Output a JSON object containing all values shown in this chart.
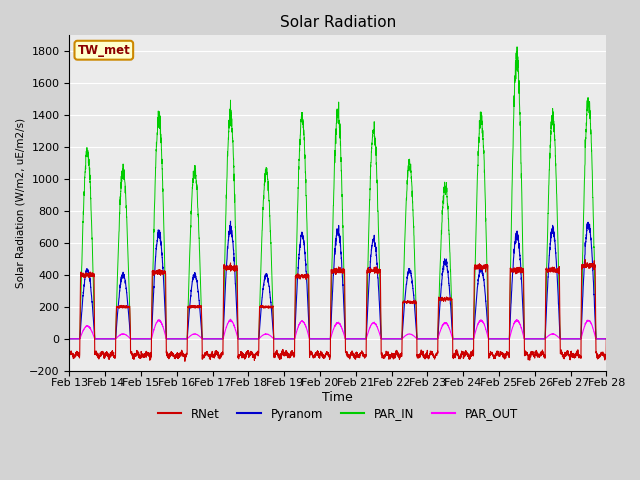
{
  "title": "Solar Radiation",
  "ylabel": "Solar Radiation (W/m2, uE/m2/s)",
  "xlabel": "Time",
  "ylim": [
    -200,
    1900
  ],
  "yticks": [
    -200,
    0,
    200,
    400,
    600,
    800,
    1000,
    1200,
    1400,
    1600,
    1800
  ],
  "n_days": 15,
  "x_labels": [
    "Feb 13",
    "Feb 14",
    "Feb 15",
    "Feb 16",
    "Feb 17",
    "Feb 18",
    "Feb 19",
    "Feb 20",
    "Feb 21",
    "Feb 22",
    "Feb 23",
    "Feb 24",
    "Feb 25",
    "Feb 26",
    "Feb 27",
    "Feb 28"
  ],
  "background_color": "#d3d3d3",
  "plot_bg_color": "#ebebeb",
  "grid_color": "#ffffff",
  "colors": {
    "RNet": "#cc0000",
    "Pyranom": "#0000cc",
    "PAR_IN": "#00cc00",
    "PAR_OUT": "#ff00ff"
  },
  "par_in_peaks": [
    1170,
    1050,
    1380,
    1050,
    1400,
    1050,
    1380,
    1420,
    1300,
    1100,
    960,
    1390,
    1760,
    1380,
    1490
  ],
  "pyranom_peaks": [
    430,
    400,
    660,
    400,
    690,
    400,
    650,
    680,
    620,
    430,
    490,
    440,
    650,
    680,
    720
  ],
  "rnet_peaks": [
    400,
    200,
    415,
    200,
    445,
    200,
    390,
    425,
    425,
    230,
    250,
    450,
    430,
    430,
    460
  ],
  "par_out_peaks": [
    80,
    30,
    115,
    30,
    115,
    30,
    110,
    100,
    100,
    30,
    100,
    115,
    115,
    30,
    115
  ],
  "night_rnet_base": -100,
  "night_rnet_noise": 25,
  "station_label": "TW_met",
  "station_label_bg": "#ffffcc",
  "station_label_border": "#cc8800",
  "figsize": [
    6.4,
    4.8
  ],
  "dpi": 100
}
